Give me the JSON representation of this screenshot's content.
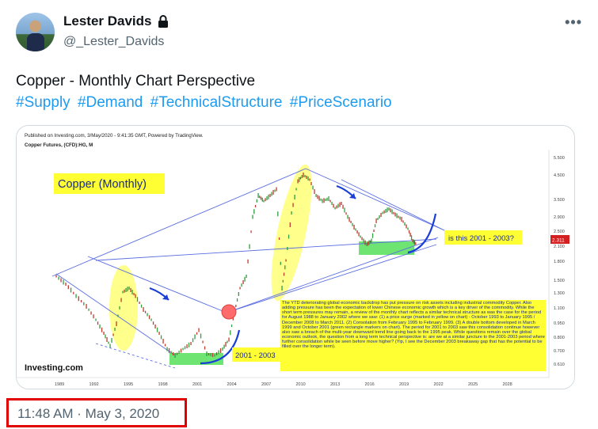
{
  "header": {
    "display_name": "Lester Davids",
    "handle": "@_Lester_Davids"
  },
  "tweet": {
    "text": "Copper - Monthly Chart Perspective",
    "hashtags": [
      "#Supply",
      "#Demand",
      "#TechnicalStructure",
      "#PriceScenario"
    ],
    "timestamp": "11:48 AM · May 3, 2020"
  },
  "chart": {
    "published": "Published on Investing.com, 3/May/2020 - 9:41:35 GMT, Powered by TradingView.",
    "instrument": "Copper Futures, (CFD):HG, M",
    "title_box": "Copper (Monthly)",
    "label_2001_2003": "2001 - 2003",
    "question_box": "is this 2001 - 2003?",
    "current_price_badge": "2.311",
    "logo": "Investing.com",
    "y_ticks": [
      "5.500",
      "4.500",
      "3.500",
      "2.900",
      "2.500",
      "2.100",
      "1.800",
      "1.500",
      "1.300",
      "1.100",
      "0.950",
      "0.800",
      "0.700",
      "0.610"
    ],
    "x_ticks": [
      "1989",
      "1992",
      "1995",
      "1998",
      "2001",
      "2004",
      "2007",
      "2010",
      "2013",
      "2016",
      "2019",
      "2022",
      "2025",
      "2028"
    ],
    "annotation": "The YTD deteriorating global economic backdrop has put pressure on risk assets including industrial commodity Copper. Also adding pressure has been the expectation of lower Chinese economic growth which is a key driver of the commodity.  While the short term pressures may remain, a review of the monthly chart reflects a similar technical structure as was the case for the period for August 1988 to January 2002 where we saw: (1) a price surge (marked in yellow on chart) - October 1993 to January 1995 / December 2008 to March 2011. (2) Consolation from February 1995 to February 1999. (3) A double bottom developed in March 1999 and October 2001 (green rectangle markers on chart). The period for 2001 to 2003 saw this consolidation continue however also saw a breach of the multi-year downward trend line going back to the 1995 peak. While questions remain over the global economic outlook, the question from a long term technical perspective is: are we at a similar juncture to the 2001-2003 period where further consolidation while be seen before move higher? (Yip, I see the December 2003 breakaway gap that has the potential to be filled over the longer term).",
    "colors": {
      "highlight_yellow": "#ffff33",
      "green_zone": "#66ee66",
      "bull_candle": "#2e9e3e",
      "bear_candle": "#c0392b",
      "trendline": "#5b6ee1",
      "arrow_blue": "#1a3fd6"
    }
  }
}
